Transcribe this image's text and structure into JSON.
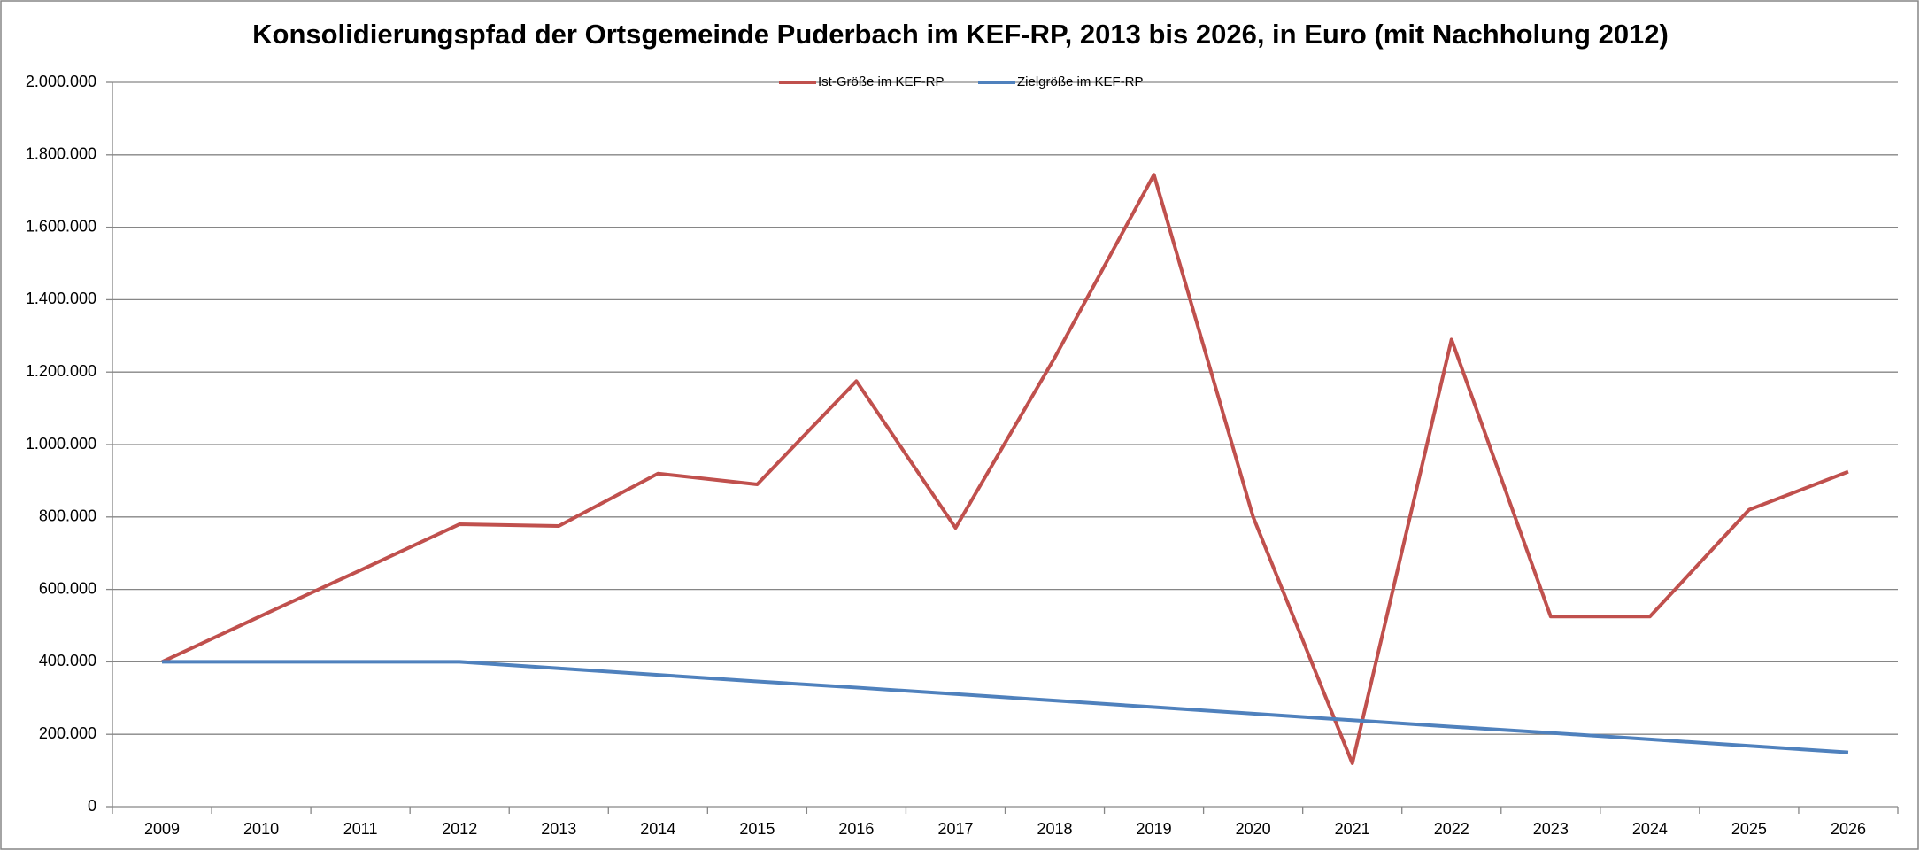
{
  "chart_data": {
    "type": "line",
    "title": "Konsolidierungspfad der Ortsgemeinde Puderbach im KEF-RP, 2013 bis 2026, in Euro (mit Nachholung 2012)",
    "categories": [
      "2009",
      "2010",
      "2011",
      "2012",
      "2013",
      "2014",
      "2015",
      "2016",
      "2017",
      "2018",
      "2019",
      "2020",
      "2021",
      "2022",
      "2023",
      "2024",
      "2025",
      "2026"
    ],
    "series": [
      {
        "name": "Ist-Größe im KEF-RP",
        "color": "#c0504d",
        "values": [
          400000,
          527000,
          653000,
          780000,
          775000,
          920000,
          890000,
          1175000,
          770000,
          1240000,
          1745000,
          800000,
          120000,
          1290000,
          525000,
          525000,
          820000,
          925000
        ]
      },
      {
        "name": "Zielgröße im KEF-RP",
        "color": "#4f81bd",
        "values": [
          400000,
          400000,
          400000,
          400000,
          382000,
          364000,
          346000,
          329000,
          311000,
          293000,
          275000,
          257000,
          239000,
          221000,
          204000,
          186000,
          168000,
          150000
        ]
      }
    ],
    "ylim": [
      0,
      2000000
    ],
    "yticks": [
      0,
      {
        "value": 200000,
        "label": "200.000"
      },
      {
        "value": 400000,
        "label": "400.000"
      },
      {
        "value": 600000,
        "label": "600.000"
      },
      {
        "value": 800000,
        "label": "800.000"
      },
      {
        "value": 1000000,
        "label": "1.000.000"
      },
      {
        "value": 1200000,
        "label": "1.200.000"
      },
      {
        "value": 1400000,
        "label": "1.400.000"
      },
      {
        "value": 1600000,
        "label": "1.600.000"
      },
      {
        "value": 1800000,
        "label": "1.800.000"
      },
      {
        "value": 2000000,
        "label": "2.000.000"
      }
    ],
    "grid": true,
    "legend": "top"
  }
}
